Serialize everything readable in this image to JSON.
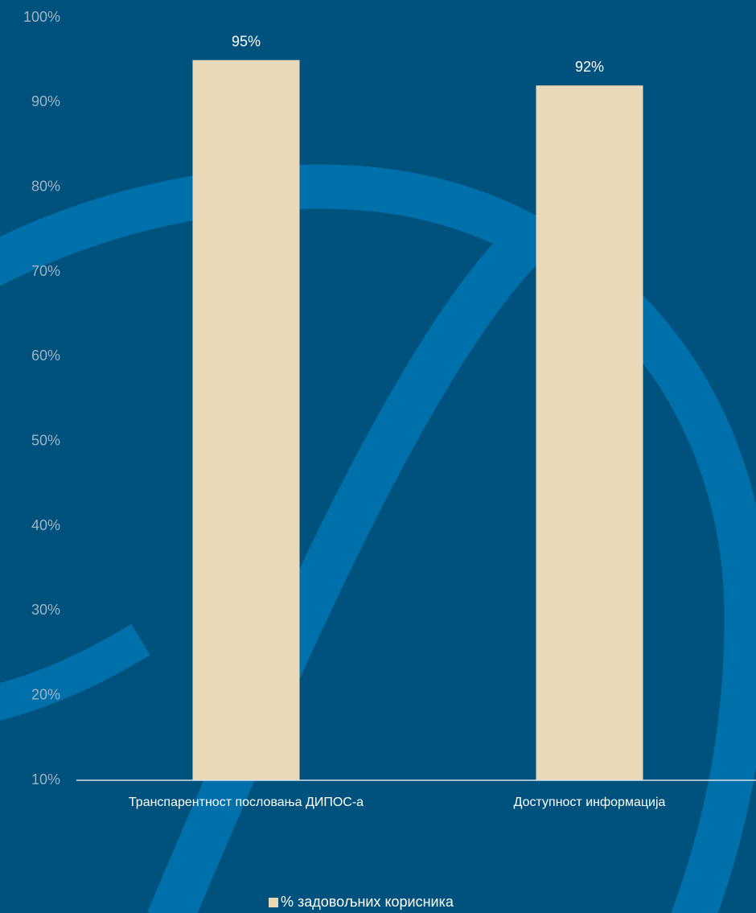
{
  "chart_data": {
    "type": "bar",
    "categories": [
      "Транспарентност пословања ДИПОС-а",
      "Доступност информација"
    ],
    "series": [
      {
        "name": "% задовољних корисника",
        "color": "#ead9b8",
        "values": [
          95,
          92
        ],
        "value_labels": [
          "95%",
          "92%"
        ]
      }
    ],
    "ylim": [
      10,
      100
    ],
    "yticks": [
      {
        "value": 10,
        "label": "10%"
      },
      {
        "value": 20,
        "label": "20%"
      },
      {
        "value": 30,
        "label": "30%"
      },
      {
        "value": 40,
        "label": "40%"
      },
      {
        "value": 50,
        "label": "50%"
      },
      {
        "value": 60,
        "label": "60%"
      },
      {
        "value": 70,
        "label": "70%"
      },
      {
        "value": 80,
        "label": "80%"
      },
      {
        "value": 90,
        "label": "90%"
      },
      {
        "value": 100,
        "label": "100%"
      }
    ],
    "grid": false,
    "legend": "bottom"
  }
}
